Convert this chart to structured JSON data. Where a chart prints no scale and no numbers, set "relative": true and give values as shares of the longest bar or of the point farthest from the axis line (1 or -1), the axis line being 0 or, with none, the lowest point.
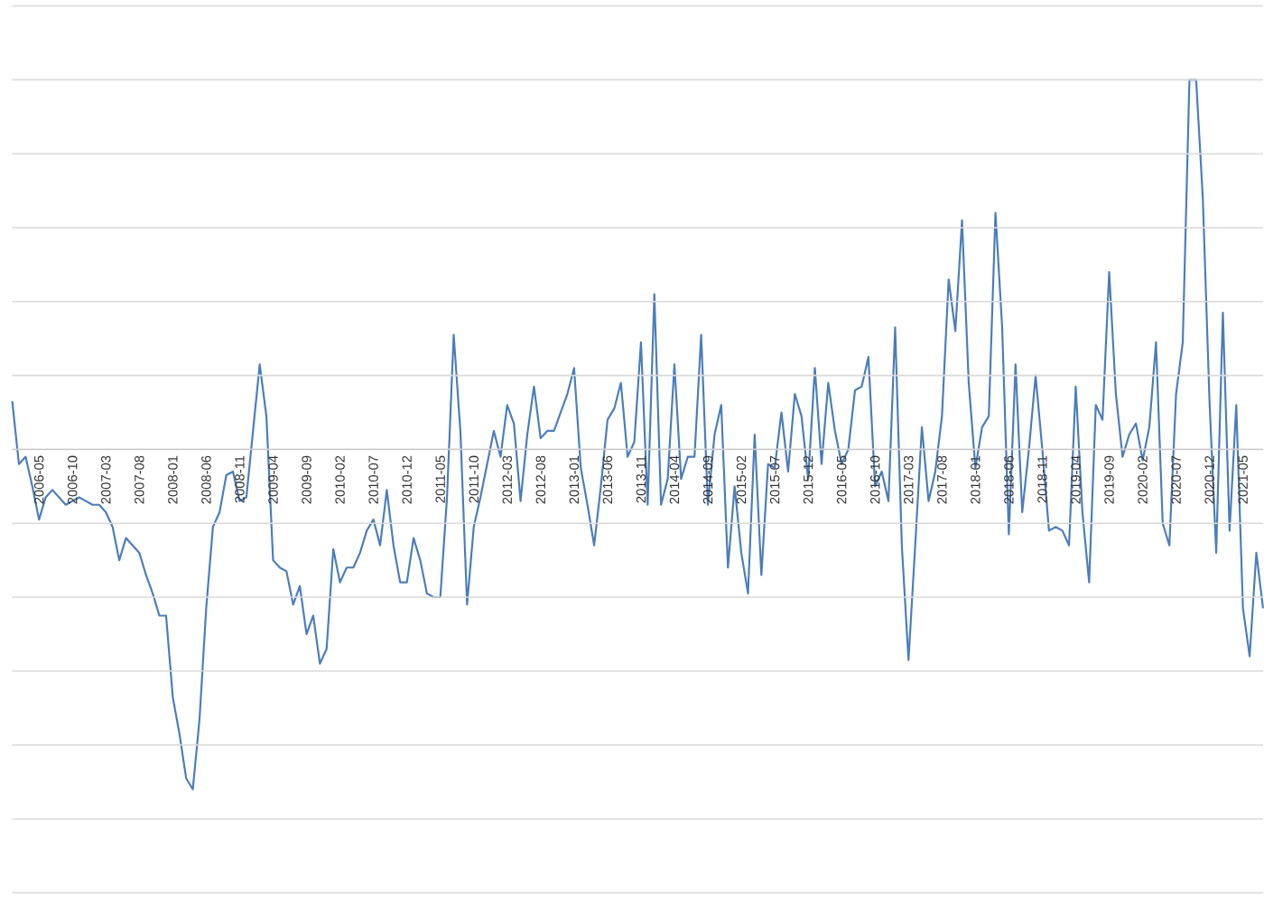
{
  "chart_data": {
    "type": "line",
    "relative": true,
    "grid": "y",
    "color": "#4a7dbb",
    "categories": [
      null,
      null,
      null,
      null,
      "2006-05",
      null,
      null,
      null,
      null,
      "2006-10",
      null,
      null,
      null,
      null,
      "2007-03",
      null,
      null,
      null,
      null,
      "2007-08",
      null,
      null,
      null,
      null,
      "2008-01",
      null,
      null,
      null,
      null,
      "2008-06",
      null,
      null,
      null,
      null,
      "2008-11",
      null,
      null,
      null,
      null,
      "2009-04",
      null,
      null,
      null,
      null,
      "2009-09",
      null,
      null,
      null,
      null,
      "2010-02",
      null,
      null,
      null,
      null,
      "2010-07",
      null,
      null,
      null,
      null,
      "2010-12",
      null,
      null,
      null,
      null,
      "2011-05",
      null,
      null,
      null,
      null,
      "2011-10",
      null,
      null,
      null,
      null,
      "2012-03",
      null,
      null,
      null,
      null,
      "2012-08",
      null,
      null,
      null,
      null,
      "2013-01",
      null,
      null,
      null,
      null,
      "2013-06",
      null,
      null,
      null,
      null,
      "2013-11",
      null,
      null,
      null,
      null,
      "2014-04",
      null,
      null,
      null,
      null,
      "2014-09",
      null,
      null,
      null,
      null,
      "2015-02",
      null,
      null,
      null,
      null,
      "2015-07",
      null,
      null,
      null,
      null,
      "2015-12",
      null,
      null,
      null,
      null,
      "2016-05",
      null,
      null,
      null,
      null,
      "2016-10",
      null,
      null,
      null,
      null,
      "2017-03",
      null,
      null,
      null,
      null,
      "2017-08",
      null,
      null,
      null,
      null,
      "2018-01",
      null,
      null,
      null,
      null,
      "2018-06",
      null,
      null,
      null,
      null,
      "2018-11",
      null,
      null,
      null,
      null,
      "2019-04",
      null,
      null,
      null,
      null,
      "2019-09",
      null,
      null,
      null,
      null,
      "2020-02",
      null,
      null,
      null,
      null,
      "2020-07",
      null,
      null,
      null,
      null,
      "2020-12",
      null,
      null,
      null,
      null,
      "2021-05",
      null,
      null,
      null
    ],
    "values": [
      0.13,
      -0.04,
      -0.02,
      -0.1,
      -0.19,
      -0.13,
      -0.11,
      -0.13,
      -0.15,
      -0.14,
      -0.13,
      -0.14,
      -0.15,
      -0.15,
      -0.17,
      -0.21,
      -0.3,
      -0.24,
      -0.26,
      -0.28,
      -0.34,
      -0.39,
      -0.45,
      -0.45,
      -0.67,
      -0.77,
      -0.89,
      -0.92,
      -0.73,
      -0.43,
      -0.21,
      -0.17,
      -0.07,
      -0.06,
      -0.14,
      -0.13,
      0.05,
      0.23,
      0.09,
      -0.3,
      -0.32,
      -0.33,
      -0.42,
      -0.37,
      -0.5,
      -0.45,
      -0.58,
      -0.54,
      -0.27,
      -0.36,
      -0.32,
      -0.32,
      -0.28,
      -0.22,
      -0.19,
      -0.26,
      -0.11,
      -0.26,
      -0.36,
      -0.36,
      -0.24,
      -0.3,
      -0.39,
      -0.4,
      -0.4,
      -0.13,
      0.31,
      0.05,
      -0.42,
      -0.21,
      -0.13,
      -0.04,
      0.05,
      -0.02,
      0.12,
      0.07,
      -0.14,
      0.04,
      0.17,
      0.03,
      0.05,
      0.05,
      0.1,
      0.15,
      0.22,
      -0.05,
      -0.15,
      -0.26,
      -0.1,
      0.08,
      0.11,
      0.18,
      -0.02,
      0.02,
      0.29,
      -0.15,
      0.42,
      -0.15,
      -0.08,
      0.23,
      -0.08,
      -0.02,
      -0.02,
      0.31,
      -0.15,
      0.04,
      0.12,
      -0.32,
      -0.1,
      -0.28,
      -0.39,
      0.04,
      -0.34,
      -0.04,
      -0.05,
      0.1,
      -0.06,
      0.15,
      0.09,
      -0.08,
      0.22,
      -0.04,
      0.18,
      0.05,
      -0.04,
      0.0,
      0.16,
      0.17,
      0.25,
      -0.1,
      -0.06,
      -0.14,
      0.33,
      -0.26,
      -0.57,
      -0.26,
      0.06,
      -0.14,
      -0.06,
      0.09,
      0.46,
      0.32,
      0.62,
      0.18,
      -0.05,
      0.06,
      0.09,
      0.64,
      0.33,
      -0.23,
      0.23,
      -0.17,
      0.0,
      0.2,
      0.0,
      -0.22,
      -0.21,
      -0.22,
      -0.26,
      0.17,
      -0.17,
      -0.36,
      0.12,
      0.08,
      0.48,
      0.15,
      -0.02,
      0.04,
      0.07,
      -0.03,
      0.06,
      0.29,
      -0.2,
      -0.26,
      0.15,
      0.29,
      1,
      1,
      0.68,
      0.13,
      -0.28,
      0.37,
      -0.22,
      0.12,
      -0.43,
      -0.56,
      -0.28,
      -0.43
    ]
  }
}
